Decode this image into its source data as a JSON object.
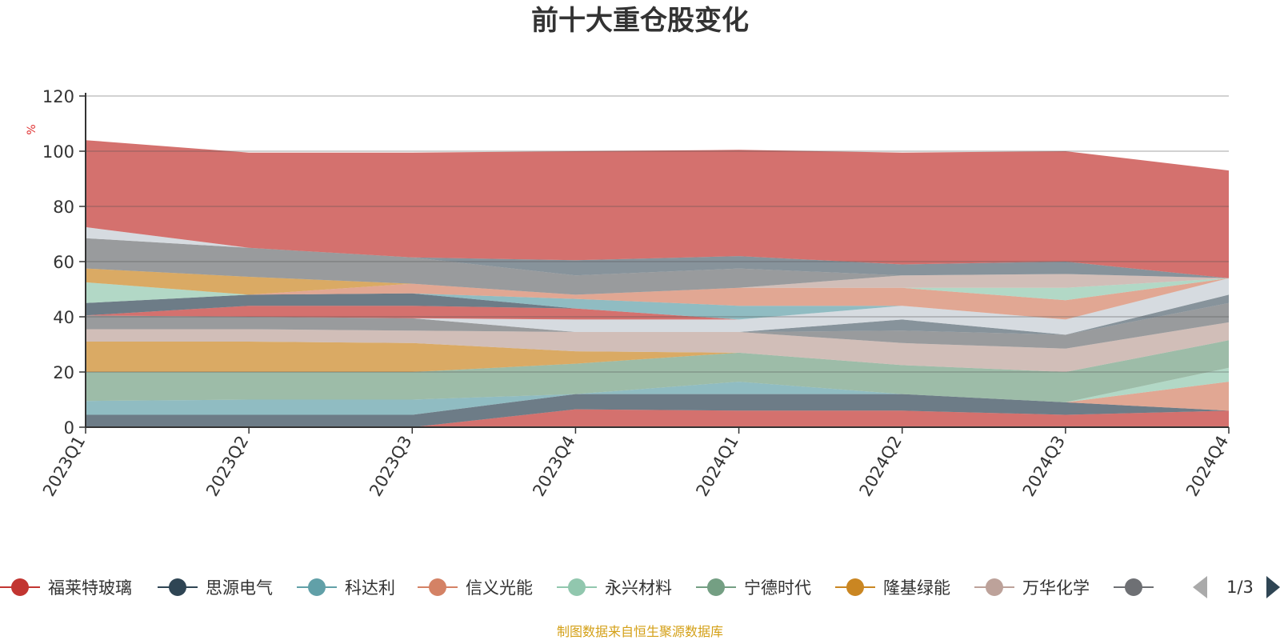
{
  "chart_data": {
    "type": "area",
    "stacked": true,
    "title": "前十大重仓股变化",
    "y_unit": "%",
    "ylim": [
      0,
      120
    ],
    "yticks": [
      0,
      20,
      40,
      60,
      80,
      100,
      120
    ],
    "categories": [
      "2023Q1",
      "2023Q2",
      "2023Q3",
      "2023Q4",
      "2024Q1",
      "2024Q2",
      "2024Q3",
      "2024Q4"
    ],
    "series": [
      {
        "name": "福莱特玻璃",
        "color": "#c23531",
        "values": [
          0,
          0,
          0,
          6.5,
          6,
          6,
          4.5,
          6
        ]
      },
      {
        "name": "思源电气",
        "color": "#2f4554",
        "values": [
          4.5,
          4.5,
          4.5,
          5.5,
          6,
          6,
          4.5,
          0
        ]
      },
      {
        "name": "科达利",
        "color": "#61a0a8",
        "values": [
          5,
          5.5,
          5.5,
          0,
          4.5,
          0,
          0,
          0
        ]
      },
      {
        "name": "信义光能",
        "color": "#d48265",
        "values": [
          0,
          0,
          0,
          0,
          0,
          0,
          0,
          10.5
        ]
      },
      {
        "name": "永兴材料",
        "color": "#91c7ae",
        "values": [
          0,
          0,
          0,
          0,
          0,
          0,
          0,
          5
        ]
      },
      {
        "name": "宁德时代",
        "color": "#749f83",
        "values": [
          10.5,
          10,
          10,
          11,
          10.5,
          10.5,
          11,
          10
        ]
      },
      {
        "name": "隆基绿能",
        "color": "#ca8622",
        "values": [
          11,
          11,
          10.5,
          4.5,
          0,
          0,
          0,
          0
        ]
      },
      {
        "name": "万华化学",
        "color": "#bda29a",
        "values": [
          4.5,
          4.5,
          4.5,
          7,
          7.5,
          8,
          8.5,
          6.5
        ]
      },
      {
        "name": "",
        "color": "#6e7074",
        "values": [
          5,
          4.5,
          4.5,
          0,
          0,
          4.5,
          5,
          7
        ]
      },
      {
        "name": "",
        "color": "#546570",
        "values": [
          0,
          0,
          0,
          0,
          0,
          4,
          0,
          3
        ]
      },
      {
        "name": "",
        "color": "#c4ccd3",
        "values": [
          0,
          0,
          0,
          4.5,
          4.5,
          5,
          5.5,
          6
        ]
      },
      {
        "name": "",
        "color": "#c23531",
        "values": [
          0,
          4,
          4.5,
          4,
          0,
          0,
          0,
          0
        ]
      },
      {
        "name": "",
        "color": "#2f4554",
        "values": [
          4.5,
          4,
          4.5,
          0,
          0,
          0,
          0,
          0
        ]
      },
      {
        "name": "",
        "color": "#61a0a8",
        "values": [
          0,
          0,
          0,
          3.5,
          5,
          0,
          0,
          0
        ]
      },
      {
        "name": "",
        "color": "#d48265",
        "values": [
          0,
          0,
          3.5,
          1.5,
          6.5,
          6.5,
          7,
          0
        ]
      },
      {
        "name": "",
        "color": "#91c7ae",
        "values": [
          7.5,
          0,
          0,
          0,
          0,
          0,
          4.5,
          0
        ]
      },
      {
        "name": "",
        "color": "#ca8622",
        "values": [
          5,
          6.5,
          0,
          0,
          0,
          0,
          0,
          0
        ]
      },
      {
        "name": "",
        "color": "#bda29a",
        "values": [
          0,
          0,
          0,
          0,
          0,
          4.5,
          5,
          0
        ]
      },
      {
        "name": "",
        "color": "#6e7074",
        "values": [
          11,
          10.5,
          9.5,
          7,
          7,
          0,
          0,
          0
        ]
      },
      {
        "name": "",
        "color": "#546570",
        "values": [
          0,
          0,
          0,
          5.5,
          4.5,
          4,
          4.5,
          0
        ]
      },
      {
        "name": "",
        "color": "#c4ccd3",
        "values": [
          4,
          0,
          0,
          0,
          0,
          0,
          0,
          0
        ]
      },
      {
        "name": "",
        "color": "#c23531",
        "values": [
          31.5,
          34.5,
          38,
          39.5,
          38.5,
          40.5,
          40,
          39
        ]
      }
    ],
    "grid": true,
    "legend_position": "bottom"
  },
  "legend": {
    "items": [
      {
        "name": "福莱特玻璃",
        "color": "#c23531"
      },
      {
        "name": "思源电气",
        "color": "#2f4554"
      },
      {
        "name": "科达利",
        "color": "#61a0a8"
      },
      {
        "name": "信义光能",
        "color": "#d48265"
      },
      {
        "name": "永兴材料",
        "color": "#91c7ae"
      },
      {
        "name": "宁德时代",
        "color": "#749f83"
      },
      {
        "name": "隆基绿能",
        "color": "#ca8622"
      },
      {
        "name": "万华化学",
        "color": "#bda29a"
      },
      {
        "name": "",
        "color": "#6e7074"
      }
    ],
    "page_indicator": "1/3"
  },
  "source_note": "制图数据来自恒生聚源数据库"
}
